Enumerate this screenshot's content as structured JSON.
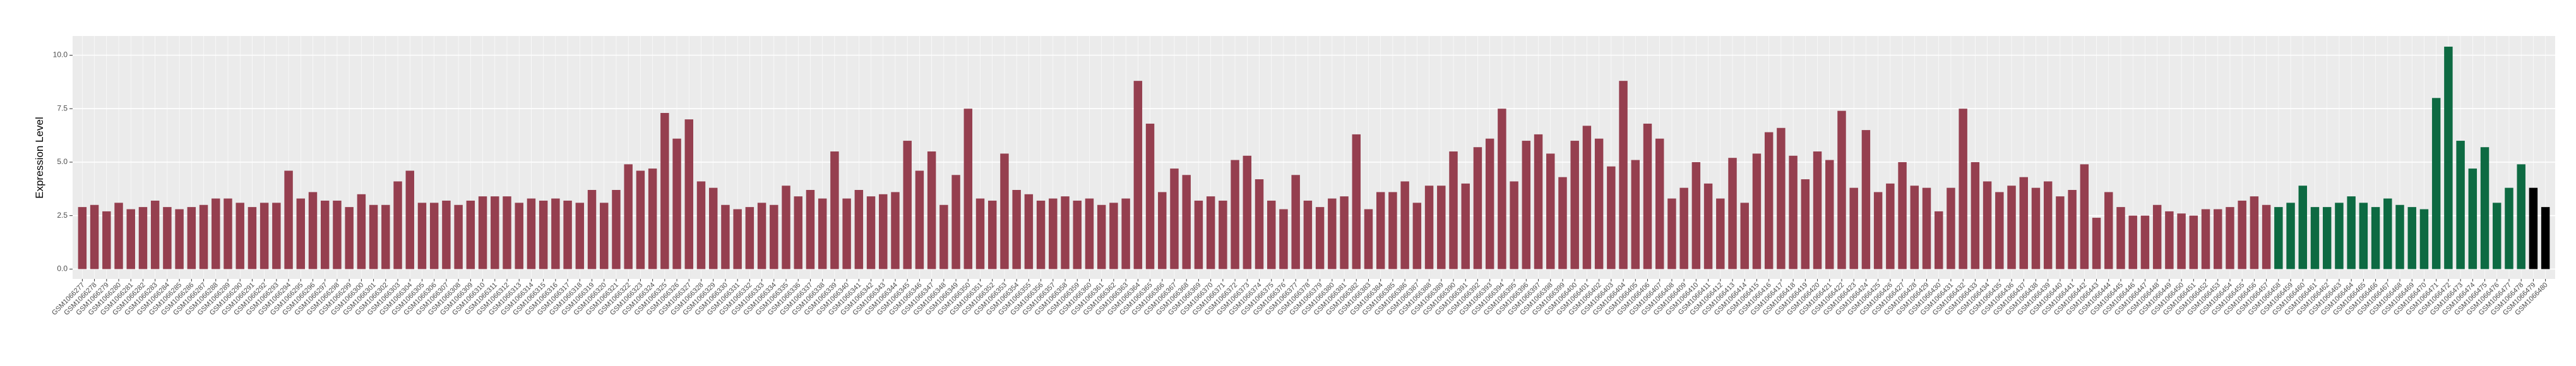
{
  "chart_data": {
    "type": "bar",
    "y_label": "Expression Level",
    "categories": [
      "GSM1066277",
      "GSM1066278",
      "GSM1066279",
      "GSM1066280",
      "GSM1066281",
      "GSM1066282",
      "GSM1066283",
      "GSM1066284",
      "GSM1066285",
      "GSM1066286",
      "GSM1066287",
      "GSM1066288",
      "GSM1066289",
      "GSM1066290",
      "GSM1066291",
      "GSM1066292",
      "GSM1066293",
      "GSM1066294",
      "GSM1066295",
      "GSM1066296",
      "GSM1066297",
      "GSM1066298",
      "GSM1066299",
      "GSM1066300",
      "GSM1066301",
      "GSM1066302",
      "GSM1066303",
      "GSM1066304",
      "GSM1066305",
      "GSM1066306",
      "GSM1066307",
      "GSM1066308",
      "GSM1066309",
      "GSM1066310",
      "GSM1066311",
      "GSM1066312",
      "GSM1066313",
      "GSM1066314",
      "GSM1066315",
      "GSM1066316",
      "GSM1066317",
      "GSM1066318",
      "GSM1066319",
      "GSM1066320",
      "GSM1066321",
      "GSM1066322",
      "GSM1066323",
      "GSM1066324",
      "GSM1066325",
      "GSM1066326",
      "GSM1066327",
      "GSM1066328",
      "GSM1066329",
      "GSM1066330",
      "GSM1066331",
      "GSM1066332",
      "GSM1066333",
      "GSM1066334",
      "GSM1066335",
      "GSM1066336",
      "GSM1066337",
      "GSM1066338",
      "GSM1066339",
      "GSM1066340",
      "GSM1066341",
      "GSM1066342",
      "GSM1066343",
      "GSM1066344",
      "GSM1066345",
      "GSM1066346",
      "GSM1066347",
      "GSM1066348",
      "GSM1066349",
      "GSM1066350",
      "GSM1066351",
      "GSM1066352",
      "GSM1066353",
      "GSM1066354",
      "GSM1066355",
      "GSM1066356",
      "GSM1066357",
      "GSM1066358",
      "GSM1066359",
      "GSM1066360",
      "GSM1066361",
      "GSM1066362",
      "GSM1066363",
      "GSM1066364",
      "GSM1066365",
      "GSM1066366",
      "GSM1066367",
      "GSM1066368",
      "GSM1066369",
      "GSM1066370",
      "GSM1066371",
      "GSM1066372",
      "GSM1066373",
      "GSM1066374",
      "GSM1066375",
      "GSM1066376",
      "GSM1066377",
      "GSM1066378",
      "GSM1066379",
      "GSM1066380",
      "GSM1066381",
      "GSM1066382",
      "GSM1066383",
      "GSM1066384",
      "GSM1066385",
      "GSM1066386",
      "GSM1066387",
      "GSM1066388",
      "GSM1066389",
      "GSM1066390",
      "GSM1066391",
      "GSM1066392",
      "GSM1066393",
      "GSM1066394",
      "GSM1066395",
      "GSM1066396",
      "GSM1066397",
      "GSM1066398",
      "GSM1066399",
      "GSM1066400",
      "GSM1066401",
      "GSM1066402",
      "GSM1066403",
      "GSM1066404",
      "GSM1066405",
      "GSM1066406",
      "GSM1066407",
      "GSM1066408",
      "GSM1066409",
      "GSM1066410",
      "GSM1066411",
      "GSM1066412",
      "GSM1066413",
      "GSM1066414",
      "GSM1066415",
      "GSM1066416",
      "GSM1066417",
      "GSM1066418",
      "GSM1066419",
      "GSM1066420",
      "GSM1066421",
      "GSM1066422",
      "GSM1066423",
      "GSM1066424",
      "GSM1066425",
      "GSM1066426",
      "GSM1066427",
      "GSM1066428",
      "GSM1066429",
      "GSM1066430",
      "GSM1066431",
      "GSM1066432",
      "GSM1066433",
      "GSM1066434",
      "GSM1066435",
      "GSM1066436",
      "GSM1066437",
      "GSM1066438",
      "GSM1066439",
      "GSM1066440",
      "GSM1066441",
      "GSM1066442",
      "GSM1066443",
      "GSM1066444",
      "GSM1066445",
      "GSM1066446",
      "GSM1066447",
      "GSM1066448",
      "GSM1066449",
      "GSM1066450",
      "GSM1066451",
      "GSM1066452",
      "GSM1066453",
      "GSM1066454",
      "GSM1066455",
      "GSM1066456",
      "GSM1066457",
      "GSM1066458",
      "GSM1066459",
      "GSM1066460",
      "GSM1066461",
      "GSM1066462",
      "GSM1066463",
      "GSM1066464",
      "GSM1066465",
      "GSM1066466",
      "GSM1066467",
      "GSM1066468",
      "GSM1066469",
      "GSM1066470",
      "GSM1066471",
      "GSM1066472",
      "GSM1066473",
      "GSM1066474",
      "GSM1066475",
      "GSM1066476",
      "GSM1066477",
      "GSM1066478",
      "GSM1066479",
      "GSM1066480"
    ],
    "values": [
      2.9,
      3.0,
      2.7,
      3.1,
      2.8,
      2.9,
      3.2,
      2.9,
      2.8,
      2.9,
      3.0,
      3.3,
      3.3,
      3.1,
      2.9,
      3.1,
      3.1,
      4.6,
      3.3,
      3.6,
      3.2,
      3.2,
      2.9,
      3.5,
      3.0,
      3.0,
      4.1,
      4.6,
      3.1,
      3.1,
      3.2,
      3.0,
      3.2,
      3.4,
      3.4,
      3.4,
      3.1,
      3.3,
      3.2,
      3.3,
      3.2,
      3.1,
      3.7,
      3.1,
      3.7,
      4.9,
      4.6,
      4.7,
      7.3,
      6.1,
      7.0,
      4.1,
      3.8,
      3.0,
      2.8,
      2.9,
      3.1,
      3.0,
      3.9,
      3.4,
      3.7,
      3.3,
      5.5,
      3.3,
      3.7,
      3.4,
      3.5,
      3.6,
      6.0,
      4.6,
      5.5,
      3.0,
      4.4,
      7.5,
      3.3,
      3.2,
      5.4,
      3.7,
      3.5,
      3.2,
      3.3,
      3.4,
      3.2,
      3.3,
      3.0,
      3.1,
      3.3,
      8.8,
      6.8,
      3.6,
      4.7,
      4.4,
      3.2,
      3.4,
      3.2,
      5.1,
      5.3,
      4.2,
      3.2,
      2.8,
      4.4,
      3.2,
      2.9,
      3.3,
      3.4,
      6.3,
      2.8,
      3.6,
      3.6,
      4.1,
      3.1,
      3.9,
      3.9,
      5.5,
      4.0,
      5.7,
      6.1,
      7.5,
      4.1,
      6.0,
      6.3,
      5.4,
      4.3,
      6.0,
      6.7,
      6.1,
      4.8,
      8.8,
      5.1,
      6.8,
      6.1,
      3.3,
      3.8,
      5.0,
      4.0,
      3.3,
      5.2,
      3.1,
      5.4,
      6.4,
      6.6,
      5.3,
      4.2,
      5.5,
      5.1,
      7.4,
      3.8,
      6.5,
      3.6,
      4.0,
      5.0,
      3.9,
      3.8,
      2.7,
      3.8,
      7.5,
      5.0,
      4.1,
      3.6,
      3.9,
      4.3,
      3.8,
      4.1,
      3.4,
      3.7,
      4.9,
      2.4,
      3.6,
      2.9,
      2.5,
      2.5,
      3.0,
      2.7,
      2.6,
      2.5,
      2.8,
      2.8,
      2.9,
      3.2,
      3.4,
      3.0,
      2.9,
      3.1,
      3.9,
      2.9,
      2.9,
      3.1,
      3.4,
      3.1,
      2.9,
      3.3,
      3.0,
      2.9,
      2.8,
      8.0,
      10.4,
      6.0,
      4.7,
      5.7,
      3.1,
      3.8,
      4.9,
      3.8,
      2.9
    ],
    "colors": [
      "#953f4f",
      "#953f4f",
      "#953f4f",
      "#953f4f",
      "#953f4f",
      "#953f4f",
      "#953f4f",
      "#953f4f",
      "#953f4f",
      "#953f4f",
      "#953f4f",
      "#953f4f",
      "#953f4f",
      "#953f4f",
      "#953f4f",
      "#953f4f",
      "#953f4f",
      "#953f4f",
      "#953f4f",
      "#953f4f",
      "#953f4f",
      "#953f4f",
      "#953f4f",
      "#953f4f",
      "#953f4f",
      "#953f4f",
      "#953f4f",
      "#953f4f",
      "#953f4f",
      "#953f4f",
      "#953f4f",
      "#953f4f",
      "#953f4f",
      "#953f4f",
      "#953f4f",
      "#953f4f",
      "#953f4f",
      "#953f4f",
      "#953f4f",
      "#953f4f",
      "#953f4f",
      "#953f4f",
      "#953f4f",
      "#953f4f",
      "#953f4f",
      "#953f4f",
      "#953f4f",
      "#953f4f",
      "#953f4f",
      "#953f4f",
      "#953f4f",
      "#953f4f",
      "#953f4f",
      "#953f4f",
      "#953f4f",
      "#953f4f",
      "#953f4f",
      "#953f4f",
      "#953f4f",
      "#953f4f",
      "#953f4f",
      "#953f4f",
      "#953f4f",
      "#953f4f",
      "#953f4f",
      "#953f4f",
      "#953f4f",
      "#953f4f",
      "#953f4f",
      "#953f4f",
      "#953f4f",
      "#953f4f",
      "#953f4f",
      "#953f4f",
      "#953f4f",
      "#953f4f",
      "#953f4f",
      "#953f4f",
      "#953f4f",
      "#953f4f",
      "#953f4f",
      "#953f4f",
      "#953f4f",
      "#953f4f",
      "#953f4f",
      "#953f4f",
      "#953f4f",
      "#953f4f",
      "#953f4f",
      "#953f4f",
      "#953f4f",
      "#953f4f",
      "#953f4f",
      "#953f4f",
      "#953f4f",
      "#953f4f",
      "#953f4f",
      "#953f4f",
      "#953f4f",
      "#953f4f",
      "#953f4f",
      "#953f4f",
      "#953f4f",
      "#953f4f",
      "#953f4f",
      "#953f4f",
      "#953f4f",
      "#953f4f",
      "#953f4f",
      "#953f4f",
      "#953f4f",
      "#953f4f",
      "#953f4f",
      "#953f4f",
      "#953f4f",
      "#953f4f",
      "#953f4f",
      "#953f4f",
      "#953f4f",
      "#953f4f",
      "#953f4f",
      "#953f4f",
      "#953f4f",
      "#953f4f",
      "#953f4f",
      "#953f4f",
      "#953f4f",
      "#953f4f",
      "#953f4f",
      "#953f4f",
      "#953f4f",
      "#953f4f",
      "#953f4f",
      "#953f4f",
      "#953f4f",
      "#953f4f",
      "#953f4f",
      "#953f4f",
      "#953f4f",
      "#953f4f",
      "#953f4f",
      "#953f4f",
      "#953f4f",
      "#953f4f",
      "#953f4f",
      "#953f4f",
      "#953f4f",
      "#953f4f",
      "#953f4f",
      "#953f4f",
      "#953f4f",
      "#953f4f",
      "#953f4f",
      "#953f4f",
      "#953f4f",
      "#953f4f",
      "#953f4f",
      "#953f4f",
      "#953f4f",
      "#953f4f",
      "#953f4f",
      "#953f4f",
      "#953f4f",
      "#953f4f",
      "#953f4f",
      "#953f4f",
      "#953f4f",
      "#953f4f",
      "#953f4f",
      "#953f4f",
      "#953f4f",
      "#953f4f",
      "#953f4f",
      "#953f4f",
      "#953f4f",
      "#953f4f",
      "#953f4f",
      "#953f4f",
      "#953f4f",
      "#953f4f",
      "#953f4f",
      "#0d6a42",
      "#0d6a42",
      "#0d6a42",
      "#0d6a42",
      "#0d6a42",
      "#0d6a42",
      "#0d6a42",
      "#0d6a42",
      "#0d6a42",
      "#0d6a42",
      "#0d6a42",
      "#0d6a42",
      "#0d6a42",
      "#0d6a42",
      "#0d6a42",
      "#0d6a42",
      "#0d6a42",
      "#0d6a42",
      "#0d6a42",
      "#0d6a42",
      "#0d6a42"
    ],
    "ylim": [
      -0.46,
      10.9
    ],
    "yticks": [
      {
        "value": 0,
        "label": "0.0"
      },
      {
        "value": 2.5,
        "label": "2.5"
      },
      {
        "value": 5,
        "label": "5.0"
      },
      {
        "value": 7.5,
        "label": "7.5"
      },
      {
        "value": 10,
        "label": "10.0"
      }
    ],
    "grid": true
  }
}
